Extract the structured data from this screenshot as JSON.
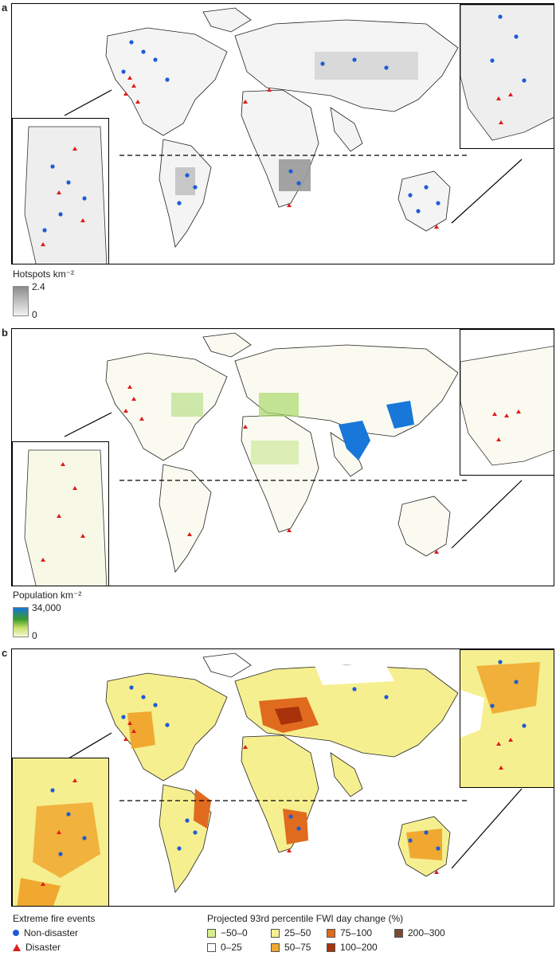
{
  "panels": [
    {
      "letter": "a",
      "scale_title": "Hotspots km⁻²",
      "scale_max": "2.4",
      "scale_min": "0"
    },
    {
      "letter": "b",
      "scale_title": "Population km⁻²",
      "scale_max": "34,000",
      "scale_min": "0"
    },
    {
      "letter": "c"
    }
  ],
  "legend": {
    "events_title": "Extreme fire events",
    "non_disaster": "Non-disaster",
    "disaster": "Disaster",
    "fwi_title": "Projected 93rd percentile FWI day change (%)",
    "classes": [
      {
        "label": "−50–0",
        "color": "#d8ee8a"
      },
      {
        "label": "0–25",
        "color": "#ffffff"
      },
      {
        "label": "25–50",
        "color": "#f6ef8f"
      },
      {
        "label": "50–75",
        "color": "#f0a830"
      },
      {
        "label": "75–100",
        "color": "#e06a1e"
      },
      {
        "label": "100–200",
        "color": "#a8320a"
      },
      {
        "label": "200–300",
        "color": "#7a4a32"
      }
    ]
  },
  "colors": {
    "non_disaster": "#1f5bd8",
    "disaster": "#e01b1b",
    "hotspot_dark": "#8c8c8c",
    "hotspot_light": "#f2f2f2",
    "pop_high": "#1877d8",
    "pop_mid": "#3a9a2a",
    "pop_low": "#f2f5c8"
  }
}
